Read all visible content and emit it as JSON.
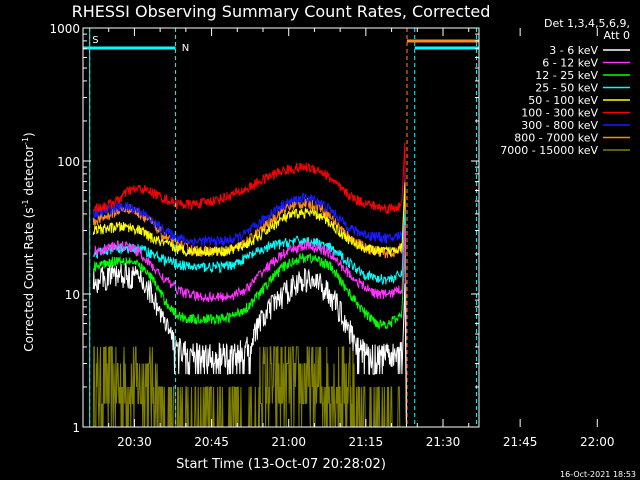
{
  "chart_data": {
    "type": "line",
    "title": "RHESSI Observing Summary Count Rates, Corrected",
    "xlabel": "Start Time (13-Oct-07 20:28:02)",
    "ylabel_main": "Corrected Count Rate (s",
    "ylabel_sup1": "-1",
    "ylabel_mid": " detector",
    "ylabel_sup2": "-1",
    "ylabel_end": ")",
    "yscale": "log",
    "ylim": [
      1,
      1000
    ],
    "xlim_minutes": [
      20.0,
      97.0
    ],
    "x_tick_labels": [
      "20:30",
      "20:45",
      "21:00",
      "21:15",
      "21:30",
      "21:45",
      "22:00"
    ],
    "y_tick_labels": [
      "1",
      "10",
      "100",
      "1000"
    ],
    "detector_info_line1": "Det 1,3,4,5,6,9,",
    "detector_info_line2": "Att 0",
    "timestamp": "16-Oct-2021 18:53",
    "flags": {
      "s_label": "S",
      "n_label": "N",
      "saa_color": "#ff8c1a",
      "night_color": "#00ffff",
      "saa_marks_min": [
        21.3,
        83.0,
        97.0
      ],
      "night_marks_min": [
        38.0,
        84.5,
        96.5
      ]
    },
    "series": [
      {
        "name": "3 - 6 keV",
        "color": "#ffffff",
        "values": [
          12.5,
          13.5,
          14,
          14,
          13,
          10,
          6,
          4,
          3.5,
          3.5,
          3.5,
          3.5,
          3.5,
          4,
          6,
          8,
          10,
          12,
          13,
          12,
          10,
          7,
          4.5,
          3.5,
          3.5,
          3.5,
          4
        ]
      },
      {
        "name": "6 - 12 keV",
        "color": "#ff33ff",
        "values": [
          21,
          22,
          23,
          23,
          20,
          16,
          13,
          11,
          10,
          9.5,
          9.5,
          9.5,
          10,
          11,
          14,
          17,
          20,
          22,
          23,
          22,
          20,
          16,
          13,
          11,
          10,
          10,
          11
        ]
      },
      {
        "name": "12 - 25 keV",
        "color": "#00ff00",
        "values": [
          16,
          17,
          18,
          18,
          16,
          13,
          9,
          7,
          6.5,
          6.5,
          6.5,
          6.5,
          7,
          8,
          10,
          13,
          16,
          18,
          19,
          18,
          16,
          12,
          9,
          7,
          6,
          6,
          7
        ]
      },
      {
        "name": "25 - 50 keV",
        "color": "#00ffff",
        "values": [
          20,
          21,
          22,
          22,
          22,
          20,
          18,
          17,
          16,
          16,
          16,
          16,
          17,
          19,
          21,
          23,
          24,
          25,
          25,
          24,
          22,
          19,
          16,
          14,
          13,
          13,
          14
        ]
      },
      {
        "name": "50 - 100 keV",
        "color": "#ffff00",
        "values": [
          30,
          31,
          32,
          32,
          30,
          26,
          24,
          22,
          21,
          21,
          21,
          21,
          22,
          24,
          27,
          32,
          37,
          40,
          41,
          39,
          34,
          28,
          24,
          22,
          21,
          21,
          23
        ]
      },
      {
        "name": "100 - 300 keV",
        "color": "#ff0000",
        "values": [
          44,
          46,
          50,
          60,
          62,
          58,
          52,
          48,
          47,
          48,
          50,
          53,
          57,
          62,
          70,
          78,
          85,
          88,
          90,
          86,
          74,
          60,
          52,
          48,
          45,
          44,
          46
        ]
      },
      {
        "name": "300 - 800 keV",
        "color": "#1a1aff",
        "values": [
          40,
          42,
          45,
          45,
          42,
          35,
          30,
          27,
          25,
          25,
          25,
          25,
          26,
          29,
          34,
          41,
          47,
          51,
          53,
          50,
          43,
          35,
          30,
          28,
          27,
          26,
          28
        ]
      },
      {
        "name": "800 - 7000 keV",
        "color": "#ff8c1a",
        "values": [
          35,
          38,
          42,
          44,
          40,
          34,
          27,
          24,
          22,
          21,
          21,
          21,
          22,
          25,
          30,
          36,
          43,
          47,
          48,
          46,
          38,
          30,
          25,
          22,
          21,
          20,
          22
        ]
      },
      {
        "name": "7000 - 15000 keV",
        "color": "#808000",
        "values": [
          3,
          3,
          3,
          3,
          2.5,
          2,
          1,
          1,
          1,
          1,
          1,
          1,
          1,
          1,
          1.5,
          2,
          2.5,
          3,
          3,
          3,
          2.5,
          2,
          1.5,
          1,
          1,
          1,
          1
        ]
      }
    ]
  }
}
